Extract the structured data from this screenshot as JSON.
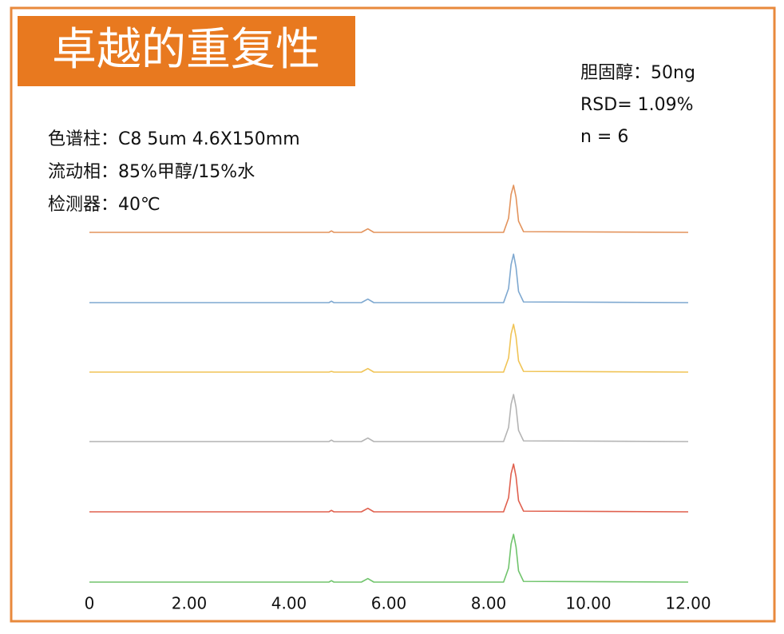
{
  "chart_data": {
    "type": "line",
    "title": "卓越的重复性",
    "annotations_left": [
      "色谱柱：C8 5um 4.6X150mm",
      "流动相：85%甲醇/15%水",
      "检测器：40℃"
    ],
    "annotations_right": [
      "胆固醇：50ng",
      "RSD= 1.09%",
      "n = 6"
    ],
    "x": [
      0,
      4.8,
      4.85,
      4.9,
      5.45,
      5.58,
      5.7,
      8.3,
      8.4,
      8.45,
      8.5,
      8.55,
      8.6,
      8.7,
      12
    ],
    "xlim": [
      0,
      12
    ],
    "xticks": [
      0,
      {
        "value": 2,
        "label": "2.00"
      },
      {
        "value": 4,
        "label": "4.00"
      },
      {
        "value": 6,
        "label": "6.00"
      },
      {
        "value": 8,
        "label": "8.00"
      },
      {
        "value": 10,
        "label": "10.00"
      },
      {
        "value": 12,
        "label": "12.00"
      }
    ],
    "ylim": [
      0,
      100
    ],
    "series": [
      {
        "color": "#e3935c",
        "values": [
          0,
          0,
          2,
          0,
          0,
          5,
          0,
          0,
          20,
          54,
          67,
          50,
          16,
          1,
          0
        ]
      },
      {
        "color": "#7ea8d0",
        "values": [
          0,
          0,
          2,
          0,
          0,
          5,
          0,
          0,
          20,
          54,
          69,
          50,
          16,
          1,
          0
        ]
      },
      {
        "color": "#f0c456",
        "values": [
          0,
          0,
          1,
          0,
          0,
          5,
          0,
          0,
          20,
          54,
          68,
          50,
          16,
          1,
          0
        ]
      },
      {
        "color": "#b4b4b4",
        "values": [
          0,
          0,
          2,
          0,
          0,
          5,
          0,
          0,
          20,
          53,
          67,
          49,
          16,
          1,
          0
        ]
      },
      {
        "color": "#e0604e",
        "values": [
          0,
          0,
          2,
          0,
          0,
          5,
          0,
          0,
          20,
          54,
          68,
          50,
          16,
          1,
          0
        ]
      },
      {
        "color": "#70c46c",
        "values": [
          0,
          0,
          2,
          0,
          0,
          5,
          0,
          0,
          20,
          54,
          68,
          50,
          16,
          1,
          0
        ]
      }
    ]
  }
}
